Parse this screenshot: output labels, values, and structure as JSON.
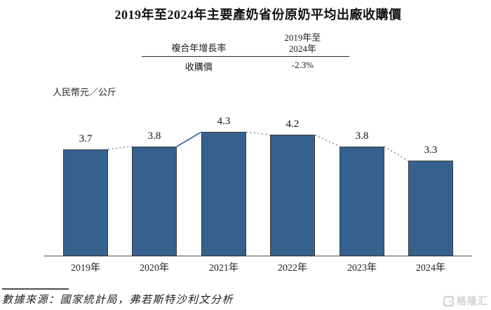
{
  "title": "2019年至2024年主要產奶省份原奶平均出廠收購價",
  "summary_table": {
    "metric_header": "複合年增長率",
    "period_header_line1": "2019年至",
    "period_header_line2": "2024年",
    "row_label": "收購價",
    "row_value": "-2.3%"
  },
  "chart_data": {
    "type": "bar",
    "title": "2019年至2024年主要產奶省份原奶平均出廠收購價",
    "ylabel": "人民幣元／公斤",
    "xlabel": "",
    "categories": [
      "2019年",
      "2020年",
      "2021年",
      "2022年",
      "2023年",
      "2024年"
    ],
    "values": [
      3.7,
      3.8,
      4.3,
      4.2,
      3.8,
      3.3
    ],
    "ylim": [
      0,
      4.6
    ],
    "grid": false,
    "legend": false,
    "data_labels": true,
    "bar_color": "#35618F",
    "connector_line": "dotted line joining adjacent bar tops",
    "connector_color": "#8f8f8f",
    "solid_segment_color": "#3f6da8"
  },
  "source_note": "數據來源：國家統計局，弗若斯特沙利文分析",
  "watermark": {
    "icon": "gelonghui-logo-icon",
    "text": "格隆汇"
  }
}
